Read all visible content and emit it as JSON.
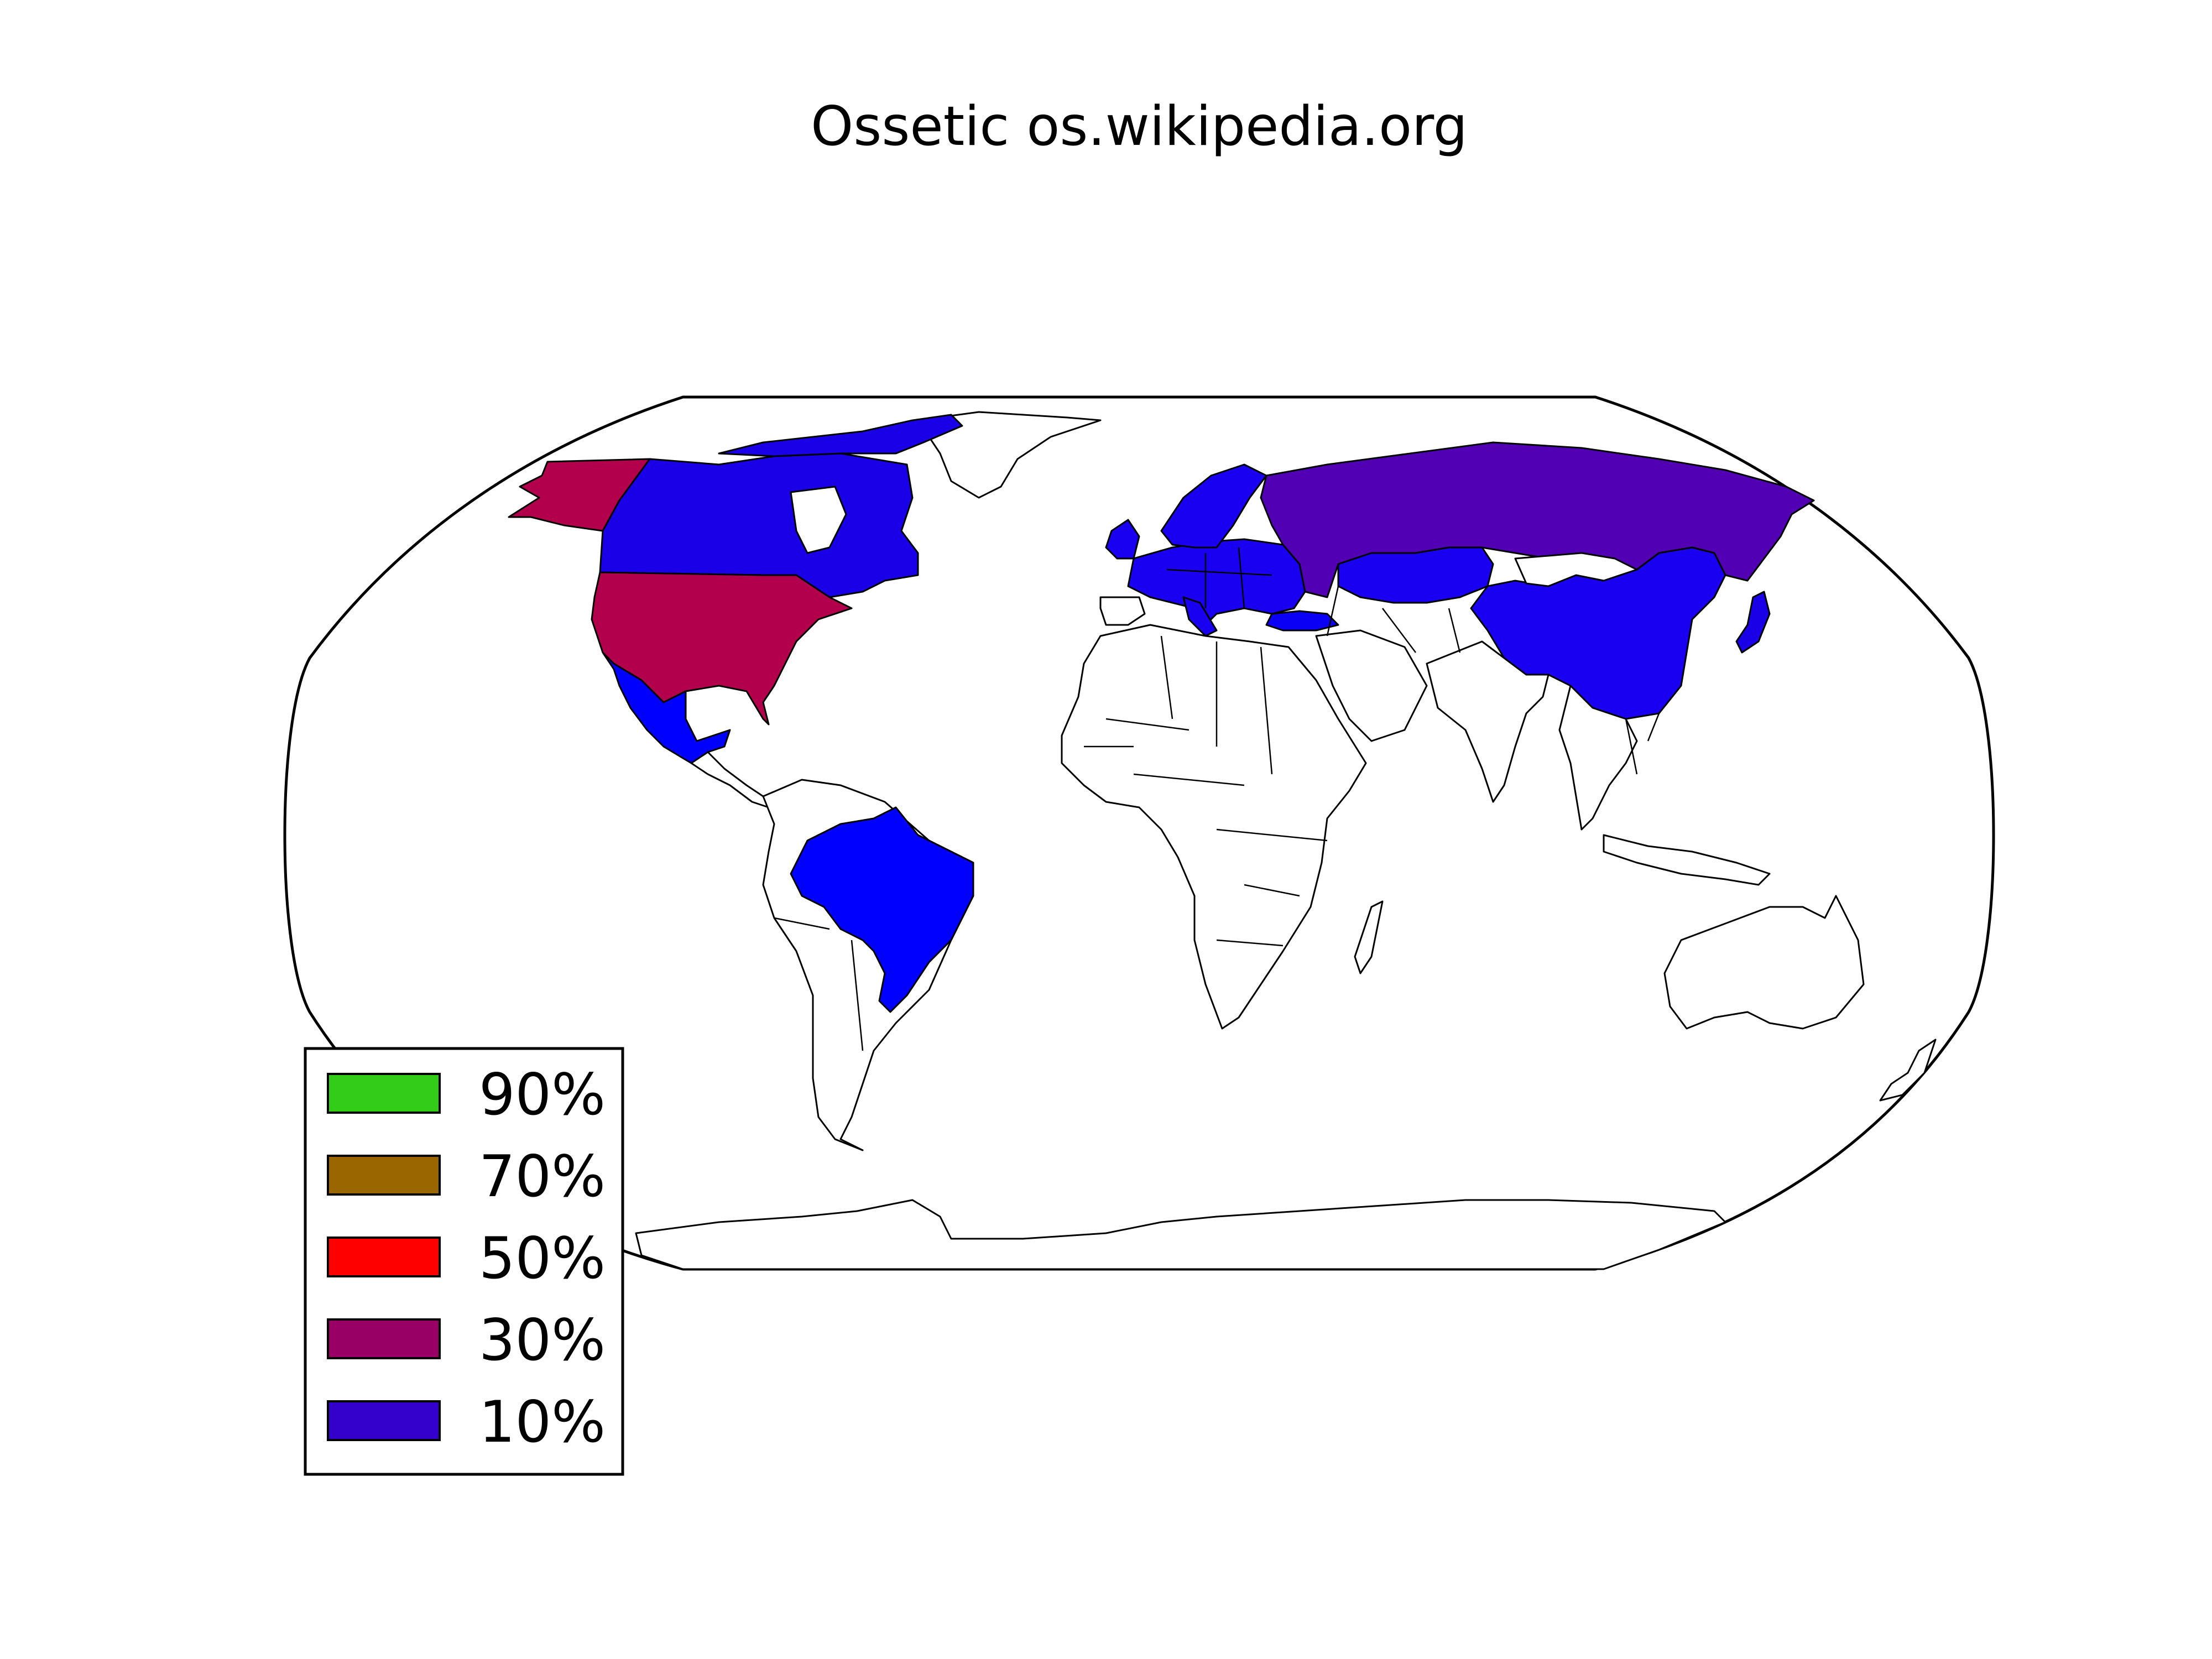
{
  "title": "Ossetic os.wikipedia.org",
  "legend": {
    "items": [
      {
        "label": "90%",
        "color": "#33cc19"
      },
      {
        "label": "70%",
        "color": "#996600"
      },
      {
        "label": "50%",
        "color": "#ff0000"
      },
      {
        "label": "30%",
        "color": "#990066"
      },
      {
        "label": "10%",
        "color": "#3300cc"
      }
    ]
  },
  "colors": {
    "usa_alaska": "#b3004d",
    "canada": "#1a00e6",
    "russia": "#5200b3",
    "china": "#1a00f0",
    "brazil": "#0000ff",
    "mexico": "#0000ff",
    "europe": "#1a00f0",
    "turkey": "#0a00f5",
    "japan": "#1a00e6",
    "land_default": "#ffffff"
  },
  "regions": [
    {
      "name": "United States",
      "color_key": "usa_alaska"
    },
    {
      "name": "Alaska",
      "color_key": "usa_alaska"
    },
    {
      "name": "Canada",
      "color_key": "canada"
    },
    {
      "name": "Russia",
      "color_key": "russia"
    },
    {
      "name": "China",
      "color_key": "china"
    },
    {
      "name": "Kazakhstan",
      "color_key": "china"
    },
    {
      "name": "Brazil",
      "color_key": "brazil"
    },
    {
      "name": "Mexico",
      "color_key": "mexico"
    },
    {
      "name": "Europe",
      "color_key": "europe"
    },
    {
      "name": "Turkey",
      "color_key": "turkey"
    },
    {
      "name": "Japan",
      "color_key": "japan"
    }
  ]
}
